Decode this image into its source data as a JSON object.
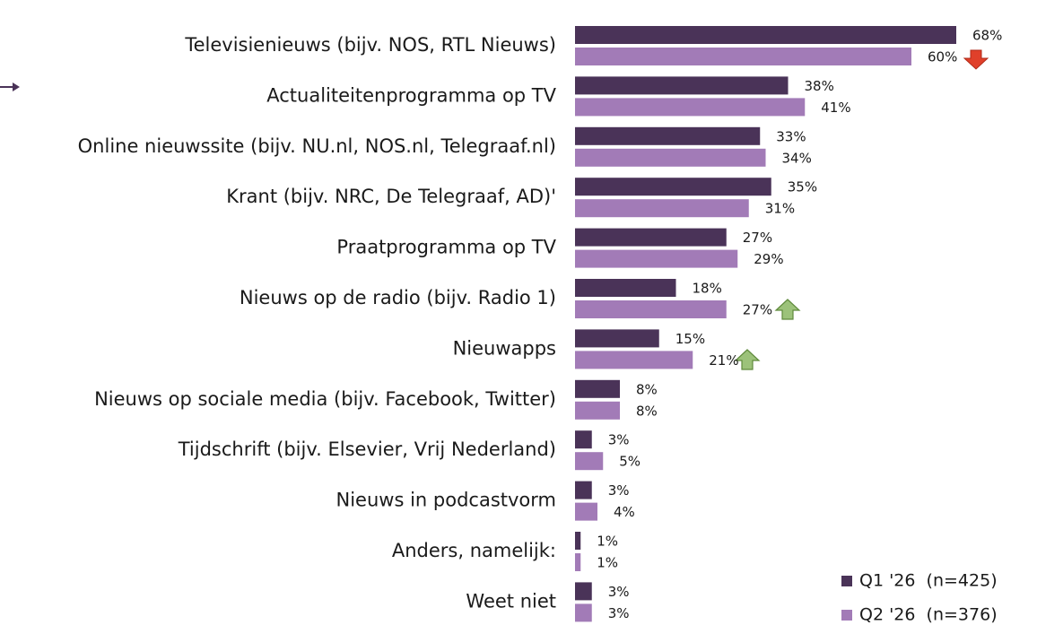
{
  "chart_data": {
    "type": "hbar",
    "categories": [
      "Televisienieuws (bijv. NOS, RTL Nieuws)",
      "Actualiteitenprogramma op TV",
      "Online nieuwssite (bijv. NU.nl, NOS.nl, Telegraaf.nl)",
      "Krant (bijv. NRC, De Telegraaf, AD)'",
      "Praatprogramma op TV",
      "Nieuws op de radio (bijv. Radio 1)",
      "Nieuwapps",
      "Nieuws op sociale media (bijv. Facebook, Twitter)",
      "Tijdschrift (bijv. Elsevier, Vrij Nederland)",
      "Nieuws in podcastvorm",
      "Anders, namelijk:",
      "Weet niet"
    ],
    "series": [
      {
        "name": "Q1 '26  (n=425)",
        "color": "#4a3358",
        "values": [
          68,
          38,
          33,
          35,
          27,
          18,
          15,
          8,
          3,
          3,
          1,
          3
        ],
        "value_labels": [
          "68%",
          "38%",
          "33%",
          "35%",
          "27%",
          "18%",
          "15%",
          "8%",
          "3%",
          "3%",
          "1%",
          "3%"
        ]
      },
      {
        "name": "Q2 '26  (n=376)",
        "color": "#a27bb7",
        "values": [
          60,
          41,
          34,
          31,
          29,
          27,
          21,
          8,
          5,
          4,
          1,
          3
        ],
        "value_labels": [
          "60%",
          "41%",
          "34%",
          "31%",
          "29%",
          "27%",
          "21%",
          "8%",
          "5%",
          "4%",
          "1%",
          "3%"
        ]
      }
    ],
    "xlim": [
      0,
      82
    ],
    "legend": "lower right"
  }
}
